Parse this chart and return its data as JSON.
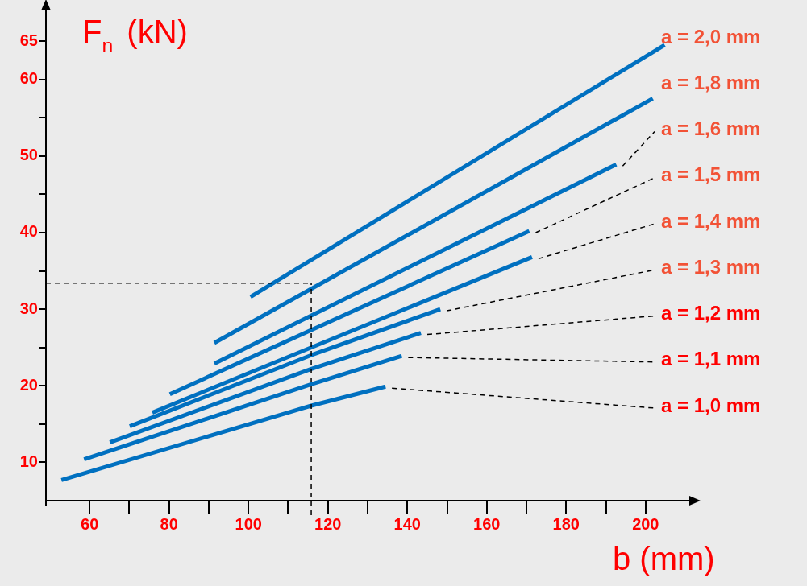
{
  "chart_data": {
    "type": "line",
    "xlabel": "b (mm)",
    "ylabel": "F$_{n}$ (kN)",
    "xlim": [
      49,
      211
    ],
    "ylim": [
      5,
      69
    ],
    "xticks": [
      60,
      {
        "value": 70,
        "label": null
      },
      80,
      {
        "value": 90,
        "label": null
      },
      100,
      {
        "value": 110,
        "label": null
      },
      120,
      {
        "value": 130,
        "label": null
      },
      140,
      {
        "value": 150,
        "label": null
      },
      160,
      {
        "value": 170,
        "label": null
      },
      180,
      {
        "value": 190,
        "label": null
      },
      200
    ],
    "yticks": [
      10,
      {
        "value": 15,
        "label": null
      },
      20,
      {
        "value": 25,
        "label": null
      },
      30,
      {
        "value": 35,
        "label": null
      },
      40,
      {
        "value": 45,
        "label": null
      },
      50,
      {
        "value": 55,
        "label": null
      },
      60,
      65
    ],
    "grid": false,
    "legend": false,
    "marker": "none",
    "line_style": "solid",
    "series": [
      {
        "name": "a = 2,0 mm",
        "color": "#0070c0",
        "x": [
          100.5,
          204.8
        ],
        "values": [
          31.6,
          64.5
        ]
      },
      {
        "name": "a = 1,8 mm",
        "color": "#0070c0",
        "x": [
          91.4,
          201.8
        ],
        "values": [
          25.6,
          57.5
        ]
      },
      {
        "name": "a = 1,6 mm",
        "color": "#0070c0",
        "x": [
          91.4,
          192.6
        ],
        "values": [
          22.9,
          48.9
        ]
      },
      {
        "name": "a = 1,5 mm",
        "color": "#0070c0",
        "x": [
          80.2,
          170.7
        ],
        "values": [
          18.9,
          40.2
        ]
      },
      {
        "name": "a = 1,4 mm",
        "color": "#0070c0",
        "x": [
          75.8,
          171.4
        ],
        "values": [
          16.5,
          36.8
        ]
      },
      {
        "name": "a = 1,3 mm",
        "color": "#0070c0",
        "x": [
          70.1,
          115.8,
          148.3
        ],
        "values": [
          14.7,
          24,
          30.0
        ]
      },
      {
        "name": "a = 1,2 mm",
        "color": "#0070c0",
        "x": [
          65.1,
          115.8,
          143.4
        ],
        "values": [
          12.6,
          22.2,
          26.9
        ]
      },
      {
        "name": "a = 1,1 mm",
        "color": "#0070c0",
        "x": [
          58.6,
          115.8,
          138.6
        ],
        "values": [
          10.4,
          20.2,
          23.9
        ]
      },
      {
        "name": "a = 1,0 mm",
        "color": "#0070c0",
        "x": [
          52.9,
          115.8,
          134.5
        ],
        "values": [
          7.7,
          17.4,
          19.9
        ]
      }
    ],
    "ref_lines": [
      {
        "axis": "x",
        "value": 115.8,
        "color": "#000000",
        "line_style": "dashed"
      },
      {
        "axis": "y",
        "value": 33.4,
        "color": "#000000",
        "line_style": "dashed"
      }
    ]
  }
}
